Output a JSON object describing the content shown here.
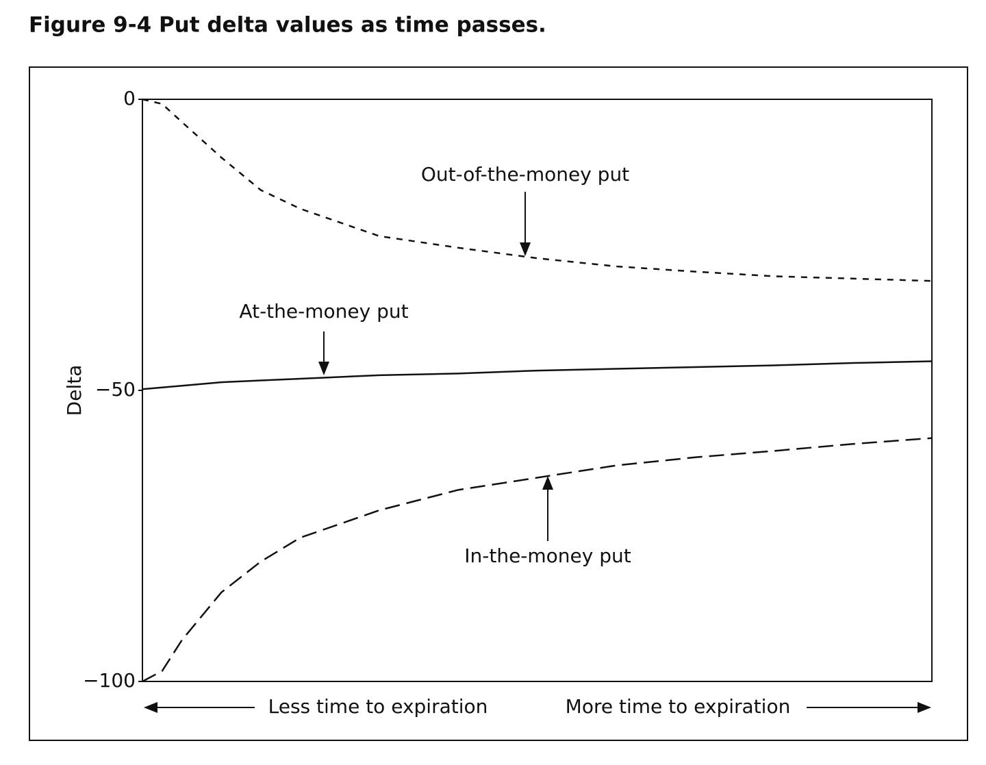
{
  "chart_data": {
    "type": "line",
    "title": "Figure 9-4  Put delta values as time passes.",
    "y_label": "Delta",
    "x_left_label": "Less time to expiration",
    "x_right_label": "More time to expiration",
    "x": [
      0,
      2.5,
      5,
      10,
      15,
      20,
      30,
      40,
      50,
      60,
      70,
      80,
      90,
      100
    ],
    "xlim": [
      0,
      100
    ],
    "ylim": [
      -100,
      0
    ],
    "yticks": [
      {
        "value": -100,
        "label": "−100"
      },
      {
        "value": -50,
        "label": "−50"
      },
      0
    ],
    "series": [
      {
        "name": "Out-of-the-money put",
        "color": "#111111",
        "linestyle": "dotted",
        "values": [
          0,
          -0.8,
          -3.9,
          -10,
          -15.6,
          -18.8,
          -23.5,
          -25.5,
          -27.3,
          -28.7,
          -29.6,
          -30.4,
          -30.8,
          -31.2
        ]
      },
      {
        "name": "At-the-money put",
        "color": "#111111",
        "linestyle": "solid",
        "values": [
          -49.8,
          -49.5,
          -49.2,
          -48.6,
          -48.3,
          -48.0,
          -47.4,
          -47.1,
          -46.6,
          -46.3,
          -46.0,
          -45.7,
          -45.3,
          -45.0
        ]
      },
      {
        "name": "In-the-money put",
        "color": "#111111",
        "linestyle": "dashed",
        "values": [
          -100,
          -98.2,
          -92.9,
          -84.7,
          -79.4,
          -75.3,
          -70.6,
          -67.1,
          -65.0,
          -62.9,
          -61.5,
          -60.4,
          -59.2,
          -58.2
        ]
      }
    ]
  }
}
